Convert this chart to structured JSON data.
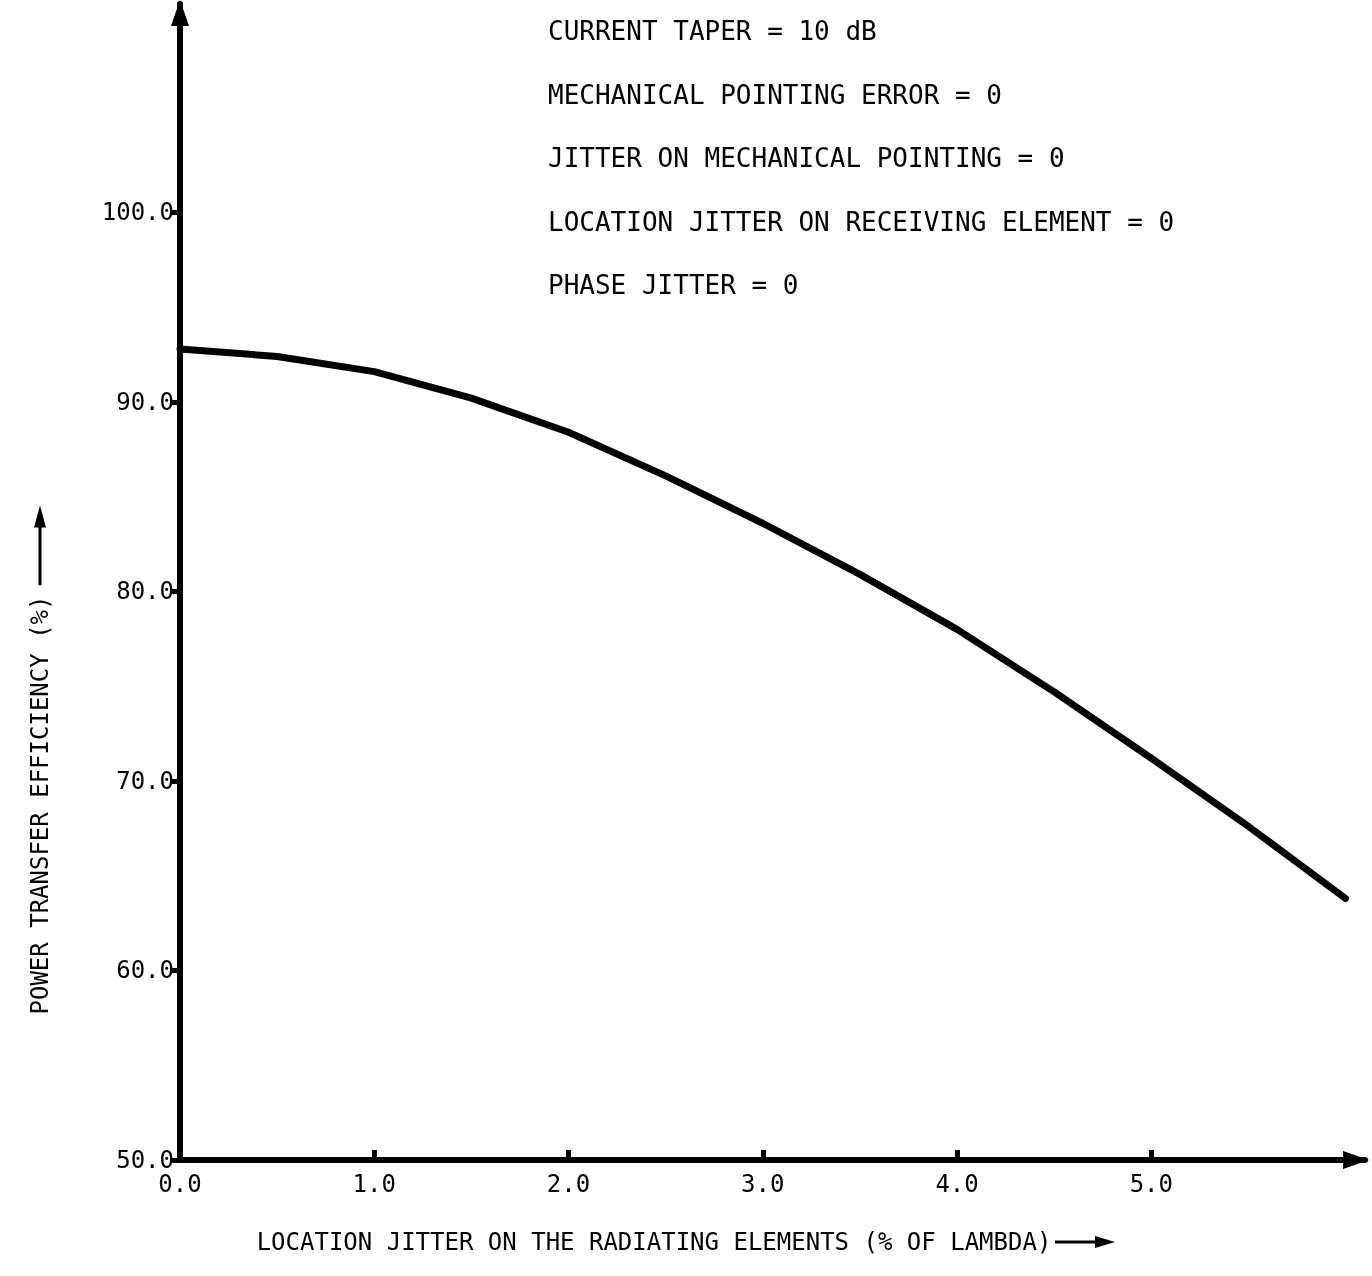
{
  "chart_data": {
    "type": "line",
    "xlabel": "LOCATION JITTER ON THE RADIATING ELEMENTS (% OF LAMBDA)",
    "ylabel": "POWER TRANSFER EFFICIENCY (%)",
    "annotations": [
      "CURRENT TAPER = 10 dB",
      "MECHANICAL POINTING ERROR = 0",
      "JITTER ON MECHANICAL POINTING = 0",
      "LOCATION JITTER ON RECEIVING ELEMENT = 0",
      "PHASE JITTER = 0"
    ],
    "x": [
      0,
      0.5,
      1.0,
      1.5,
      2.0,
      2.5,
      3.0,
      3.5,
      4.0,
      4.5,
      5.0,
      5.5,
      6.0
    ],
    "series": [
      {
        "color": "#000000",
        "values": [
          92.8,
          92.4,
          91.6,
          90.2,
          88.4,
          86.1,
          83.6,
          80.9,
          78.0,
          74.7,
          71.2,
          67.6,
          63.8
        ]
      }
    ],
    "xlim": [
      0,
      6.1
    ],
    "xticks": [
      {
        "value": 0,
        "label": "0.0"
      },
      {
        "value": 1,
        "label": "1.0"
      },
      {
        "value": 2,
        "label": "2.0"
      },
      {
        "value": 3,
        "label": "3.0"
      },
      {
        "value": 4,
        "label": "4.0"
      },
      {
        "value": 5,
        "label": "5.0"
      }
    ],
    "ylim": [
      50,
      111
    ],
    "yticks": [
      {
        "value": 50,
        "label": "50.0"
      },
      {
        "value": 60,
        "label": "60.0"
      },
      {
        "value": 70,
        "label": "70.0"
      },
      {
        "value": 80,
        "label": "80.0"
      },
      {
        "value": 90,
        "label": "90.0"
      },
      {
        "value": 100,
        "label": "100.0"
      }
    ],
    "grid": false,
    "marker": "none",
    "line_style": "solid"
  }
}
